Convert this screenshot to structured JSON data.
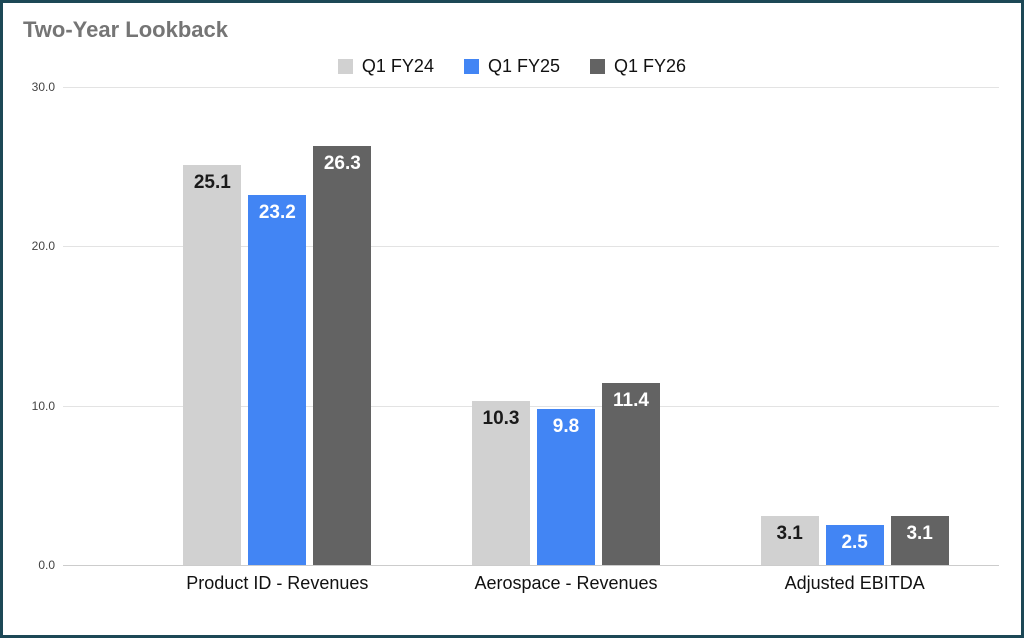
{
  "chart_data": {
    "type": "bar",
    "title": "Two-Year Lookback",
    "categories": [
      "Product ID - Revenues",
      "Aerospace - Revenues",
      "Adjusted EBITDA"
    ],
    "series": [
      {
        "name": "Q1 FY24",
        "color": "#d1d1d1",
        "label_color": "#1a1a1a",
        "values": [
          25.1,
          10.3,
          3.1
        ]
      },
      {
        "name": "Q1 FY25",
        "color": "#4285f4",
        "label_color": "#ffffff",
        "values": [
          23.2,
          9.8,
          2.5
        ]
      },
      {
        "name": "Q1 FY26",
        "color": "#636363",
        "label_color": "#ffffff",
        "values": [
          26.3,
          11.4,
          3.1
        ]
      }
    ],
    "ylim": [
      0,
      30
    ],
    "yticks": [
      0,
      10,
      20,
      30
    ],
    "ytick_labels": [
      "0.0",
      "10.0",
      "20.0",
      "30.0"
    ],
    "value_decimals": 1,
    "grid": true,
    "legend_position": "top",
    "xlabel": "",
    "ylabel": ""
  },
  "colors": {
    "frame_border": "#1c4856",
    "title_text": "#757575",
    "gridline": "#e3e3e3",
    "axis_text": "#444444"
  }
}
